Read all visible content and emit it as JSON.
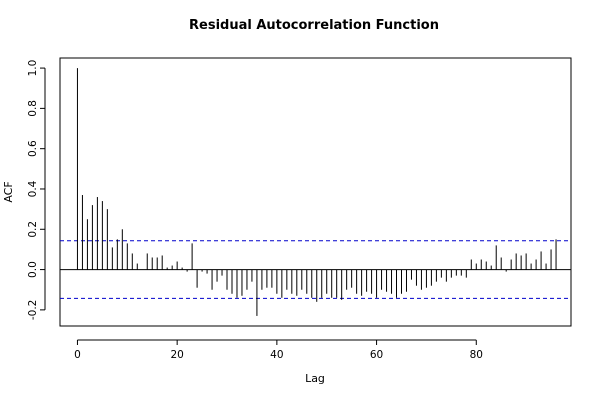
{
  "chart_data": {
    "type": "bar",
    "title": "Residual Autocorrelation Function",
    "xlabel": "Lag",
    "ylabel": "ACF",
    "xlim": [
      -3.5,
      99
    ],
    "ylim": [
      -0.28,
      1.05
    ],
    "x_ticks": [
      0,
      20,
      40,
      60,
      80
    ],
    "x_tick_labels": [
      "0",
      "20",
      "40",
      "60",
      "80"
    ],
    "y_ticks": [
      -0.2,
      0.0,
      0.2,
      0.4,
      0.6,
      0.8,
      1.0
    ],
    "y_tick_labels": [
      "-0.2",
      "0.0",
      "0.2",
      "0.4",
      "0.6",
      "0.8",
      "1.0"
    ],
    "confidence_bound": 0.143,
    "confidence_line_color": "#0000cc",
    "zero_line_color": "#000000",
    "bar_color": "#000000",
    "lags": [
      0,
      1,
      2,
      3,
      4,
      5,
      6,
      7,
      8,
      9,
      10,
      11,
      12,
      13,
      14,
      15,
      16,
      17,
      18,
      19,
      20,
      21,
      22,
      23,
      24,
      25,
      26,
      27,
      28,
      29,
      30,
      31,
      32,
      33,
      34,
      35,
      36,
      37,
      38,
      39,
      40,
      41,
      42,
      43,
      44,
      45,
      46,
      47,
      48,
      49,
      50,
      51,
      52,
      53,
      54,
      55,
      56,
      57,
      58,
      59,
      60,
      61,
      62,
      63,
      64,
      65,
      66,
      67,
      68,
      69,
      70,
      71,
      72,
      73,
      74,
      75,
      76,
      77,
      78,
      79,
      80,
      81,
      82,
      83,
      84,
      85,
      86,
      87,
      88,
      89,
      90,
      91,
      92,
      93,
      94,
      95,
      96
    ],
    "values": [
      1.0,
      0.37,
      0.25,
      0.32,
      0.36,
      0.34,
      0.3,
      0.11,
      0.15,
      0.2,
      0.13,
      0.08,
      0.03,
      0.0,
      0.08,
      0.06,
      0.06,
      0.07,
      0.01,
      0.02,
      0.04,
      0.01,
      -0.01,
      0.13,
      -0.09,
      -0.01,
      -0.02,
      -0.1,
      -0.06,
      -0.03,
      -0.1,
      -0.12,
      -0.14,
      -0.13,
      -0.1,
      -0.06,
      -0.23,
      -0.1,
      -0.09,
      -0.09,
      -0.12,
      -0.14,
      -0.1,
      -0.12,
      -0.13,
      -0.1,
      -0.12,
      -0.14,
      -0.16,
      -0.14,
      -0.12,
      -0.14,
      -0.14,
      -0.15,
      -0.1,
      -0.09,
      -0.12,
      -0.13,
      -0.11,
      -0.12,
      -0.14,
      -0.1,
      -0.11,
      -0.12,
      -0.14,
      -0.12,
      -0.11,
      -0.05,
      -0.08,
      -0.1,
      -0.09,
      -0.08,
      -0.06,
      -0.04,
      -0.06,
      -0.04,
      -0.03,
      -0.03,
      -0.04,
      0.05,
      0.03,
      0.05,
      0.04,
      0.02,
      0.12,
      0.06,
      -0.01,
      0.05,
      0.08,
      0.07,
      0.08,
      0.03,
      0.05,
      0.09,
      0.03,
      0.1,
      0.15
    ]
  }
}
